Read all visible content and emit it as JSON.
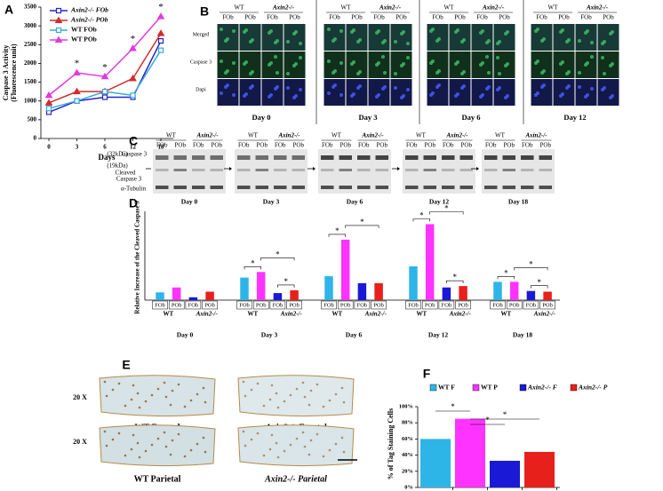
{
  "figure": {
    "panel_labels": [
      "A",
      "B",
      "C",
      "D",
      "E",
      "F"
    ],
    "b": {
      "row_labels": [
        "Merged",
        "Caspase 3",
        "Dapi"
      ],
      "genotypes": [
        "WT",
        "Axin2-/-"
      ],
      "cell_types": [
        "FOb",
        "POb"
      ],
      "days": [
        "Day 0",
        "Day 3",
        "Day 6",
        "Day 12"
      ]
    },
    "c": {
      "band_labels": [
        "(32kDa)",
        "Caspase 3",
        "(19kDa)",
        "Cleaved",
        "Caspase 3",
        "α-Tubulin"
      ],
      "genotypes": [
        "WT",
        "Axin2-/-"
      ],
      "cell_types": [
        "FOb",
        "POb"
      ],
      "days": [
        "Day 0",
        "Day 3",
        "Day 6",
        "Day 12",
        "Day 18"
      ]
    },
    "e": {
      "magnification": "20 X",
      "captions": [
        "WT Frontal",
        "Axin2-/- Frontal",
        "WT Parietal",
        "Axin2-/- Parietal"
      ]
    }
  },
  "chart_data": [
    {
      "type": "line",
      "y_label": "Caspase 3 Activity",
      "y_label_2": "(Fluorescence unit)",
      "x_label": "Days",
      "categories": [
        "0",
        "3",
        "6",
        "12",
        "18"
      ],
      "ylim": [
        0,
        3500
      ],
      "yticks": [
        0,
        500,
        1000,
        1500,
        2000,
        2500,
        3000,
        3500
      ],
      "series": [
        {
          "name": "Axin2-/-  FOb",
          "color": "#2323c8",
          "marker": "square",
          "values": [
            700,
            1000,
            1100,
            1100,
            2600
          ]
        },
        {
          "name": "Axin2-/-  POb",
          "color": "#d42a2a",
          "marker": "triangle",
          "values": [
            950,
            1250,
            1250,
            1600,
            2800
          ]
        },
        {
          "name": "WT FOb",
          "color": "#35a9dc",
          "marker": "square",
          "values": [
            800,
            1000,
            1250,
            1150,
            2350
          ]
        },
        {
          "name": "WT POb",
          "color": "#e03ae0",
          "marker": "triangle",
          "values": [
            1150,
            1750,
            1650,
            2400,
            3250
          ]
        }
      ],
      "significant": [
        false,
        true,
        true,
        true,
        true
      ],
      "significance_label": "*",
      "legend": "upper left"
    },
    {
      "type": "grouped_bar",
      "y_label": "Relative Increase of the Cleaved Caspase 3",
      "categories": [
        "Day 0",
        "Day 3",
        "Day 6",
        "Day 12",
        "Day 18"
      ],
      "ylim": [
        0,
        60
      ],
      "groups": [
        {
          "name": "WT",
          "series": [
            {
              "name": "FOb",
              "color": "#2eb5e8",
              "values": [
                5.5,
                16,
                17,
                24,
                13
              ]
            },
            {
              "name": "POb",
              "color": "#ff33ff",
              "values": [
                9,
                20,
                43,
                54,
                13
              ]
            }
          ]
        },
        {
          "name": "Axin2-/-",
          "series": [
            {
              "name": "FOb",
              "color": "#1a1ad6",
              "values": [
                2,
                5,
                12,
                9,
                6.5
              ]
            },
            {
              "name": "POb",
              "color": "#e8201c",
              "values": [
                6,
                7,
                12,
                10,
                6
              ]
            }
          ]
        }
      ],
      "significance_label": "*"
    },
    {
      "type": "bar",
      "y_label": "% of Tag Staining Cells",
      "categories": [
        "WT F",
        "WT P",
        "Axin2-/-  F",
        "Axin2-/-  P"
      ],
      "values": [
        60,
        85,
        33,
        44
      ],
      "colors": [
        "#2eb5e8",
        "#ff33ff",
        "#1a1ad6",
        "#e8201c"
      ],
      "ylim": [
        0,
        100
      ],
      "yticks": [
        {
          "value": 0,
          "label": "0%"
        },
        {
          "value": 20,
          "label": "20%"
        },
        {
          "value": 40,
          "label": "40%"
        },
        {
          "value": 60,
          "label": "60%"
        },
        {
          "value": 80,
          "label": "80%"
        },
        {
          "value": 100,
          "label": "100%"
        }
      ],
      "significance_label": "*",
      "legend": "top"
    }
  ]
}
